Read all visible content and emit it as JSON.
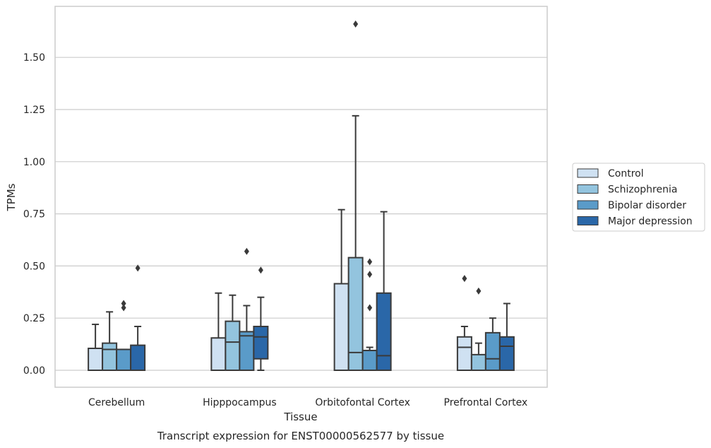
{
  "chart_data": {
    "type": "boxplot",
    "xlabel": "Tissue",
    "ylabel": "TPMs",
    "caption": "Transcript expression for ENST00000562577 by tissue",
    "ylim": [
      -0.08,
      1.75
    ],
    "yticks": [
      0.0,
      0.25,
      0.5,
      0.75,
      1.0,
      1.25,
      1.5
    ],
    "ytick_labels": [
      "0.00",
      "0.25",
      "0.50",
      "0.75",
      "1.00",
      "1.25",
      "1.50"
    ],
    "grid": "horizontal",
    "legend_position": "right",
    "categories": [
      "Cerebellum",
      "Hipppocampus",
      "Orbitofontal Cortex",
      "Prefrontal Cortex"
    ],
    "series": [
      {
        "name": "Control",
        "color": "#cfe1f2",
        "boxes": [
          {
            "whislo": 0.0,
            "q1": 0.0,
            "med": 0.0,
            "q3": 0.105,
            "whishi": 0.22,
            "fliers": []
          },
          {
            "whislo": 0.0,
            "q1": 0.0,
            "med": 0.0,
            "q3": 0.155,
            "whishi": 0.37,
            "fliers": []
          },
          {
            "whislo": 0.0,
            "q1": 0.0,
            "med": 0.0,
            "q3": 0.415,
            "whishi": 0.77,
            "fliers": []
          },
          {
            "whislo": 0.0,
            "q1": 0.0,
            "med": 0.11,
            "q3": 0.16,
            "whishi": 0.21,
            "fliers": [
              0.44
            ]
          }
        ]
      },
      {
        "name": "Schizophrenia",
        "color": "#93c4de",
        "boxes": [
          {
            "whislo": 0.0,
            "q1": 0.0,
            "med": 0.1,
            "q3": 0.13,
            "whishi": 0.28,
            "fliers": []
          },
          {
            "whislo": 0.0,
            "q1": 0.0,
            "med": 0.135,
            "q3": 0.235,
            "whishi": 0.36,
            "fliers": []
          },
          {
            "whislo": 0.0,
            "q1": 0.0,
            "med": 0.085,
            "q3": 0.54,
            "whishi": 1.22,
            "fliers": [
              1.66
            ]
          },
          {
            "whislo": 0.0,
            "q1": 0.0,
            "med": 0.0,
            "q3": 0.075,
            "whishi": 0.13,
            "fliers": [
              0.38
            ]
          }
        ]
      },
      {
        "name": "Bipolar disorder",
        "color": "#5a9bc9",
        "boxes": [
          {
            "whislo": 0.0,
            "q1": 0.0,
            "med": 0.1,
            "q3": 0.1,
            "whishi": 0.1,
            "fliers": [
              0.3,
              0.32
            ]
          },
          {
            "whislo": 0.0,
            "q1": 0.0,
            "med": 0.165,
            "q3": 0.185,
            "whishi": 0.31,
            "fliers": [
              0.57
            ]
          },
          {
            "whislo": 0.0,
            "q1": 0.0,
            "med": 0.095,
            "q3": 0.095,
            "whishi": 0.11,
            "fliers": [
              0.3,
              0.46,
              0.52
            ]
          },
          {
            "whislo": 0.0,
            "q1": 0.0,
            "med": 0.055,
            "q3": 0.18,
            "whishi": 0.25,
            "fliers": []
          }
        ]
      },
      {
        "name": "Major depression",
        "color": "#2a67a8",
        "boxes": [
          {
            "whislo": 0.0,
            "q1": 0.0,
            "med": 0.0,
            "q3": 0.12,
            "whishi": 0.21,
            "fliers": [
              0.49
            ]
          },
          {
            "whislo": 0.0,
            "q1": 0.055,
            "med": 0.16,
            "q3": 0.21,
            "whishi": 0.35,
            "fliers": [
              0.48
            ]
          },
          {
            "whislo": 0.0,
            "q1": 0.0,
            "med": 0.07,
            "q3": 0.37,
            "whishi": 0.76,
            "fliers": []
          },
          {
            "whislo": 0.0,
            "q1": 0.0,
            "med": 0.115,
            "q3": 0.16,
            "whishi": 0.32,
            "fliers": []
          }
        ]
      }
    ]
  }
}
